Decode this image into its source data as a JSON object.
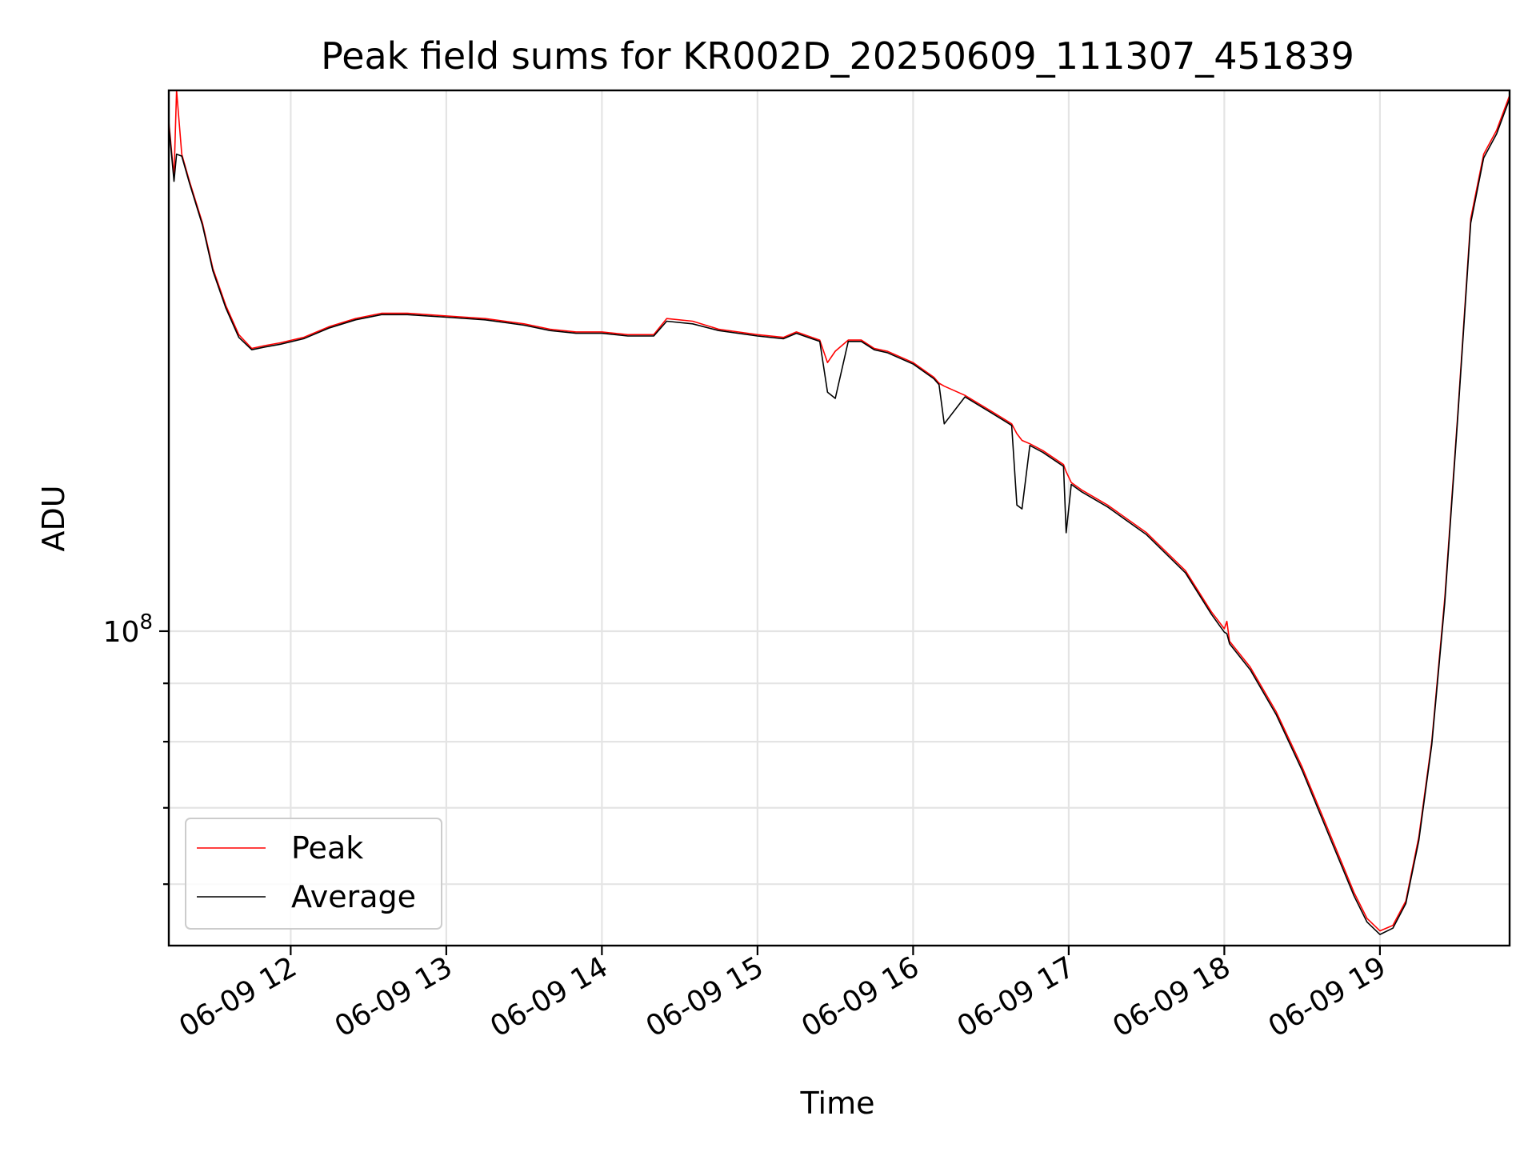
{
  "chart_data": {
    "type": "line",
    "title": "Peak field sums for KR002D_20250609_111307_451839",
    "xlabel": "Time",
    "ylabel": "ADU",
    "x_axis_type": "time",
    "y_scale": "log",
    "xlim": [
      "2025-06-09 11:13",
      "2025-06-09 19:50"
    ],
    "ylim": [
      53000000,
      298000000
    ],
    "x_ticks": [
      {
        "value": "2025-06-09 12:00",
        "label": "06-09 12"
      },
      {
        "value": "2025-06-09 13:00",
        "label": "06-09 13"
      },
      {
        "value": "2025-06-09 14:00",
        "label": "06-09 14"
      },
      {
        "value": "2025-06-09 15:00",
        "label": "06-09 15"
      },
      {
        "value": "2025-06-09 16:00",
        "label": "06-09 16"
      },
      {
        "value": "2025-06-09 17:00",
        "label": "06-09 17"
      },
      {
        "value": "2025-06-09 18:00",
        "label": "06-09 18"
      },
      {
        "value": "2025-06-09 19:00",
        "label": "06-09 19"
      }
    ],
    "y_major_ticks": [
      {
        "value": 100000000,
        "base": "10",
        "exp": "8"
      }
    ],
    "y_minor_ticks": [
      60000000,
      70000000,
      80000000,
      90000000
    ],
    "grid": true,
    "legend_position": "lower left",
    "series": [
      {
        "name": "Peak",
        "color": "#ff0000",
        "x": [
          "2025-06-09 11:13",
          "2025-06-09 11:15",
          "2025-06-09 11:16",
          "2025-06-09 11:18",
          "2025-06-09 11:21",
          "2025-06-09 11:26",
          "2025-06-09 11:30",
          "2025-06-09 11:35",
          "2025-06-09 11:40",
          "2025-06-09 11:45",
          "2025-06-09 11:50",
          "2025-06-09 11:56",
          "2025-06-09 12:05",
          "2025-06-09 12:15",
          "2025-06-09 12:25",
          "2025-06-09 12:35",
          "2025-06-09 12:45",
          "2025-06-09 13:00",
          "2025-06-09 13:15",
          "2025-06-09 13:30",
          "2025-06-09 13:40",
          "2025-06-09 13:50",
          "2025-06-09 14:00",
          "2025-06-09 14:10",
          "2025-06-09 14:20",
          "2025-06-09 14:25",
          "2025-06-09 14:35",
          "2025-06-09 14:45",
          "2025-06-09 15:00",
          "2025-06-09 15:10",
          "2025-06-09 15:15",
          "2025-06-09 15:24",
          "2025-06-09 15:27",
          "2025-06-09 15:30",
          "2025-06-09 15:35",
          "2025-06-09 15:40",
          "2025-06-09 15:45",
          "2025-06-09 15:50",
          "2025-06-09 16:00",
          "2025-06-09 16:08",
          "2025-06-09 16:10",
          "2025-06-09 16:12",
          "2025-06-09 16:20",
          "2025-06-09 16:30",
          "2025-06-09 16:36",
          "2025-06-09 16:38",
          "2025-06-09 16:40",
          "2025-06-09 16:42",
          "2025-06-09 16:45",
          "2025-06-09 16:50",
          "2025-06-09 16:58",
          "2025-06-09 16:59",
          "2025-06-09 17:01",
          "2025-06-09 17:05",
          "2025-06-09 17:15",
          "2025-06-09 17:30",
          "2025-06-09 17:45",
          "2025-06-09 17:55",
          "2025-06-09 18:00",
          "2025-06-09 18:01",
          "2025-06-09 18:02",
          "2025-06-09 18:10",
          "2025-06-09 18:20",
          "2025-06-09 18:30",
          "2025-06-09 18:40",
          "2025-06-09 18:50",
          "2025-06-09 18:55",
          "2025-06-09 19:00",
          "2025-06-09 19:05",
          "2025-06-09 19:10",
          "2025-06-09 19:15",
          "2025-06-09 19:20",
          "2025-06-09 19:25",
          "2025-06-09 19:30",
          "2025-06-09 19:35",
          "2025-06-09 19:40",
          "2025-06-09 19:45",
          "2025-06-09 19:50"
        ],
        "y": [
          280000000,
          250000000,
          298000000,
          262000000,
          248000000,
          228000000,
          208000000,
          193000000,
          182000000,
          177000000,
          178000000,
          179000000,
          181000000,
          185000000,
          188000000,
          190000000,
          190000000,
          189000000,
          188000000,
          186000000,
          184000000,
          183000000,
          183000000,
          182000000,
          182000000,
          188000000,
          187000000,
          184000000,
          182000000,
          181000000,
          183000000,
          180000000,
          172000000,
          176000000,
          180000000,
          180000000,
          177000000,
          176000000,
          172000000,
          167000000,
          165000000,
          164000000,
          161000000,
          156000000,
          153000000,
          152000000,
          149000000,
          147000000,
          146000000,
          144000000,
          140000000,
          138000000,
          135000000,
          133000000,
          129000000,
          122000000,
          113000000,
          104000000,
          100500000,
          102000000,
          98000000,
          93000000,
          85000000,
          76000000,
          67000000,
          59000000,
          56000000,
          54600000,
          55200000,
          58000000,
          66000000,
          80000000,
          107000000,
          155000000,
          230000000,
          262000000,
          275000000,
          295000000
        ]
      },
      {
        "name": "Average",
        "color": "#000000",
        "x": [
          "2025-06-09 11:13",
          "2025-06-09 11:15",
          "2025-06-09 11:16",
          "2025-06-09 11:18",
          "2025-06-09 11:21",
          "2025-06-09 11:26",
          "2025-06-09 11:30",
          "2025-06-09 11:35",
          "2025-06-09 11:40",
          "2025-06-09 11:45",
          "2025-06-09 11:50",
          "2025-06-09 11:56",
          "2025-06-09 12:05",
          "2025-06-09 12:15",
          "2025-06-09 12:25",
          "2025-06-09 12:35",
          "2025-06-09 12:45",
          "2025-06-09 13:00",
          "2025-06-09 13:15",
          "2025-06-09 13:30",
          "2025-06-09 13:40",
          "2025-06-09 13:50",
          "2025-06-09 14:00",
          "2025-06-09 14:10",
          "2025-06-09 14:20",
          "2025-06-09 14:25",
          "2025-06-09 14:35",
          "2025-06-09 14:45",
          "2025-06-09 15:00",
          "2025-06-09 15:10",
          "2025-06-09 15:15",
          "2025-06-09 15:24",
          "2025-06-09 15:27",
          "2025-06-09 15:30",
          "2025-06-09 15:35",
          "2025-06-09 15:40",
          "2025-06-09 15:45",
          "2025-06-09 15:50",
          "2025-06-09 16:00",
          "2025-06-09 16:08",
          "2025-06-09 16:10",
          "2025-06-09 16:12",
          "2025-06-09 16:20",
          "2025-06-09 16:30",
          "2025-06-09 16:36",
          "2025-06-09 16:38",
          "2025-06-09 16:40",
          "2025-06-09 16:42",
          "2025-06-09 16:45",
          "2025-06-09 16:50",
          "2025-06-09 16:58",
          "2025-06-09 16:59",
          "2025-06-09 17:01",
          "2025-06-09 17:05",
          "2025-06-09 17:15",
          "2025-06-09 17:30",
          "2025-06-09 17:45",
          "2025-06-09 17:55",
          "2025-06-09 18:00",
          "2025-06-09 18:01",
          "2025-06-09 18:02",
          "2025-06-09 18:10",
          "2025-06-09 18:20",
          "2025-06-09 18:30",
          "2025-06-09 18:40",
          "2025-06-09 18:50",
          "2025-06-09 18:55",
          "2025-06-09 19:00",
          "2025-06-09 19:05",
          "2025-06-09 19:10",
          "2025-06-09 19:15",
          "2025-06-09 19:20",
          "2025-06-09 19:25",
          "2025-06-09 19:30",
          "2025-06-09 19:35",
          "2025-06-09 19:40",
          "2025-06-09 19:45",
          "2025-06-09 19:50"
        ],
        "y": [
          278000000,
          248000000,
          262000000,
          261000000,
          247000000,
          227000000,
          207000000,
          192000000,
          181000000,
          176500000,
          177500000,
          178500000,
          180500000,
          184500000,
          187500000,
          189500000,
          189500000,
          188500000,
          187500000,
          185500000,
          183500000,
          182500000,
          182500000,
          181500000,
          181500000,
          187000000,
          186000000,
          183500000,
          181500000,
          180500000,
          182500000,
          179500000,
          162000000,
          160000000,
          179500000,
          179500000,
          176500000,
          175500000,
          171500000,
          166500000,
          164500000,
          152000000,
          160500000,
          155500000,
          152500000,
          151500000,
          129000000,
          128000000,
          145500000,
          143500000,
          139500000,
          122000000,
          134500000,
          132500000,
          128500000,
          121500000,
          112500000,
          103500000,
          99800000,
          99500000,
          97500000,
          92500000,
          84500000,
          75500000,
          66500000,
          58600000,
          55600000,
          54200000,
          54900000,
          57700000,
          65500000,
          79500000,
          106000000,
          154000000,
          228000000,
          260000000,
          273000000,
          293000000
        ]
      }
    ]
  }
}
